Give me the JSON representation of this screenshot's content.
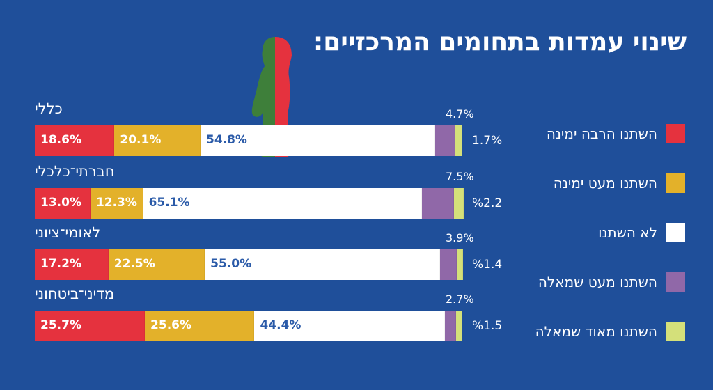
{
  "title": "שינוי עמדות בתחומים המרכזיים:",
  "colors": {
    "much_right": "#e5323e",
    "little_right": "#e3b12a",
    "no_change": "#ffffff",
    "little_left": "#9068a8",
    "much_left": "#d4e07a",
    "background": "#1f4f9a"
  },
  "chart_data": {
    "type": "bar",
    "stacked": true,
    "orientation": "horizontal",
    "title": "שינוי עמדות בתחומים המרכזיים:",
    "categories": [
      "כללי",
      "חברתי־כלכלי",
      "לאומי־ציוני",
      "מדיני־ביטחוני"
    ],
    "series": [
      {
        "name": "השתנו הרבה ימינה",
        "values": [
          18.6,
          13.0,
          17.2,
          25.7
        ],
        "labels": [
          "18.6%",
          "13.0%",
          "17.2%",
          "25.7%"
        ]
      },
      {
        "name": "השתנו מעט ימינה",
        "values": [
          20.1,
          12.3,
          22.5,
          25.6
        ],
        "labels": [
          "20.1%",
          "12.3%",
          "22.5%",
          "25.6%"
        ]
      },
      {
        "name": "לא השתנו",
        "values": [
          54.8,
          65.1,
          55.0,
          44.4
        ],
        "labels": [
          "54.8%",
          "65.1%",
          "55.0%",
          "44.4%"
        ]
      },
      {
        "name": "השתנו מעט שמאלה",
        "values": [
          4.7,
          7.5,
          3.9,
          2.7
        ],
        "labels": [
          "4.7%",
          "7.5%",
          "3.9%",
          "2.7%"
        ]
      },
      {
        "name": "השתנו מאוד שמאלה",
        "values": [
          1.7,
          2.2,
          1.4,
          1.5
        ],
        "labels": [
          "1.7%",
          "%2.2",
          "%1.4",
          "%1.5"
        ]
      }
    ],
    "legend_position": "right"
  }
}
